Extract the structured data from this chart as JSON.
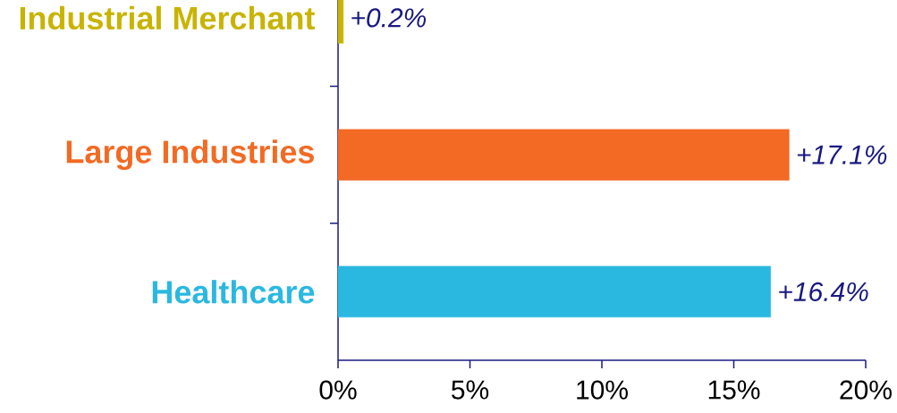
{
  "chart_data": {
    "type": "bar",
    "orientation": "horizontal",
    "categories": [
      "Industrial Merchant",
      "Large Industries",
      "Healthcare"
    ],
    "values": [
      0.2,
      17.1,
      16.4
    ],
    "colors": [
      "#c8b400",
      "#f26a24",
      "#2bb8e0"
    ],
    "value_labels": [
      "+0.2%",
      "+17.1%",
      "+16.4%"
    ],
    "xlim": [
      0,
      20
    ],
    "xticks": [
      {
        "value": 0,
        "label": "0%"
      },
      {
        "value": 5,
        "label": "5%"
      },
      {
        "value": 10,
        "label": "10%"
      },
      {
        "value": 15,
        "label": "15%"
      },
      {
        "value": 20,
        "label": "20%"
      }
    ]
  }
}
